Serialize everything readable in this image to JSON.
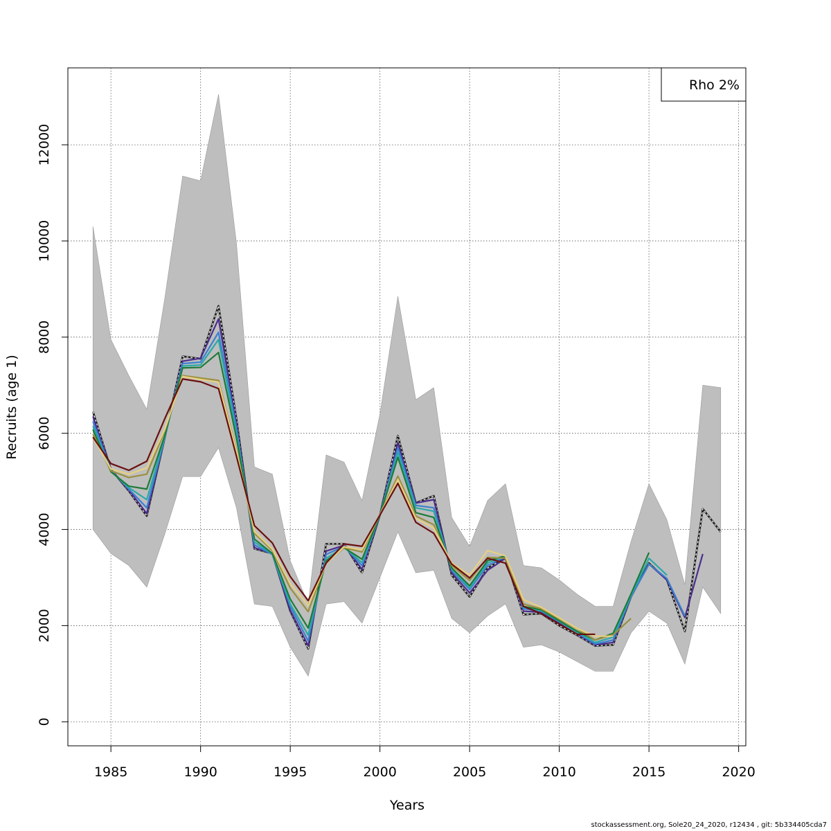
{
  "footer_text": "stockassessment.org, Sole20_24_2020, r12434 , git: 5b334405cda7",
  "chart_data": {
    "type": "line",
    "title": "",
    "xlabel": "Years",
    "ylabel": "Recruits (age 1)",
    "xlim": [
      1982.6,
      2020.4
    ],
    "ylim": [
      -500,
      13600
    ],
    "x_ticks": [
      1985,
      1990,
      1995,
      2000,
      2005,
      2010,
      2015,
      2020
    ],
    "y_ticks": [
      0,
      2000,
      4000,
      6000,
      8000,
      10000,
      12000
    ],
    "grid": true,
    "legend": {
      "position": "top-right",
      "label": "Rho 2%"
    },
    "confidence_band": {
      "x": [
        1984,
        1985,
        1986,
        1987,
        1988,
        1989,
        1990,
        1991,
        1992,
        1993,
        1994,
        1995,
        1996,
        1997,
        1998,
        1999,
        2000,
        2001,
        2002,
        2003,
        2004,
        2005,
        2006,
        2007,
        2008,
        2009,
        2010,
        2011,
        2012,
        2013,
        2014,
        2015,
        2016,
        2017,
        2018,
        2019
      ],
      "upper": [
        10300,
        7950,
        7200,
        6500,
        8800,
        11350,
        11250,
        13050,
        9950,
        5300,
        5150,
        3350,
        2450,
        5550,
        5400,
        4600,
        6400,
        8850,
        6700,
        6950,
        4250,
        3650,
        4600,
        4950,
        3250,
        3200,
        2950,
        2650,
        2400,
        2400,
        3750,
        4950,
        4200,
        2850,
        7000,
        6950
      ],
      "lower": [
        4000,
        3500,
        3250,
        2800,
        3900,
        5100,
        5100,
        5700,
        4450,
        2450,
        2400,
        1550,
        950,
        2450,
        2500,
        2050,
        3000,
        3950,
        3100,
        3150,
        2150,
        1850,
        2200,
        2450,
        1550,
        1600,
        1450,
        1250,
        1050,
        1050,
        1850,
        2300,
        2050,
        1200,
        2800,
        2250
      ]
    },
    "series": [
      {
        "color": "#1a1a1a",
        "dashed": true,
        "x": [
          1984,
          1985,
          1986,
          1987,
          1988,
          1989,
          1990,
          1991,
          1992,
          1993,
          1994,
          1995,
          1996,
          1997,
          1998,
          1999,
          2000,
          2001,
          2002,
          2003,
          2004,
          2005,
          2006,
          2007,
          2008,
          2009,
          2010,
          2011,
          2012,
          2013,
          2014,
          2015,
          2016,
          2017,
          2018,
          2019
        ],
        "values": [
          6450,
          5250,
          4800,
          4280,
          5900,
          7600,
          7550,
          8650,
          6300,
          3600,
          3500,
          2300,
          1520,
          3700,
          3700,
          3100,
          4300,
          5950,
          4550,
          4700,
          3050,
          2600,
          3200,
          3400,
          2230,
          2250,
          2000,
          1800,
          1580,
          1600,
          2600,
          3300,
          2950,
          1880,
          4430,
          3950
        ]
      },
      {
        "color": "#4b2d8e",
        "dashed": false,
        "x": [
          1984,
          1985,
          1986,
          1987,
          1988,
          1989,
          1990,
          1991,
          1992,
          1993,
          1994,
          1995,
          1996,
          1997,
          1998,
          1999,
          2000,
          2001,
          2002,
          2003,
          2004,
          2005,
          2006,
          2007,
          2008,
          2009,
          2010,
          2011,
          2012,
          2013,
          2014,
          2015,
          2016,
          2017,
          2018
        ],
        "values": [
          6350,
          5250,
          4820,
          4330,
          5900,
          7500,
          7560,
          8380,
          6200,
          3620,
          3500,
          2320,
          1580,
          3550,
          3670,
          3170,
          4300,
          5800,
          4550,
          4620,
          3100,
          2680,
          3150,
          3400,
          2300,
          2280,
          2050,
          1820,
          1600,
          1650,
          2600,
          3280,
          2950,
          2170,
          3490
        ]
      },
      {
        "color": "#3a80d0",
        "dashed": false,
        "x": [
          1984,
          1985,
          1986,
          1987,
          1988,
          1989,
          1990,
          1991,
          1992,
          1993,
          1994,
          1995,
          1996,
          1997,
          1998,
          1999,
          2000,
          2001,
          2002,
          2003,
          2004,
          2005,
          2006,
          2007,
          2008,
          2009,
          2010,
          2011,
          2012,
          2013,
          2014,
          2015,
          2016,
          2017
        ],
        "values": [
          6250,
          5230,
          4840,
          4450,
          5900,
          7450,
          7480,
          8100,
          6100,
          3680,
          3480,
          2400,
          1680,
          3480,
          3650,
          3250,
          4300,
          5700,
          4500,
          4450,
          3150,
          2750,
          3250,
          3430,
          2350,
          2300,
          2080,
          1850,
          1620,
          1700,
          2600,
          3280,
          2980,
          2200
        ]
      },
      {
        "color": "#2aa8a8",
        "dashed": false,
        "x": [
          1984,
          1985,
          1986,
          1987,
          1988,
          1989,
          1990,
          1991,
          1992,
          1993,
          1994,
          1995,
          1996,
          1997,
          1998,
          1999,
          2000,
          2001,
          2002,
          2003,
          2004,
          2005,
          2006,
          2007,
          2008,
          2009,
          2010,
          2011,
          2012,
          2013,
          2014,
          2015,
          2016
        ],
        "values": [
          6150,
          5210,
          4870,
          4620,
          5920,
          7400,
          7420,
          7950,
          6000,
          3740,
          3490,
          2450,
          1800,
          3400,
          3630,
          3310,
          4300,
          5600,
          4450,
          4380,
          3180,
          2780,
          3300,
          3450,
          2380,
          2310,
          2090,
          1860,
          1650,
          1760,
          2630,
          3400,
          3050
        ]
      },
      {
        "color": "#1e7a38",
        "dashed": false,
        "x": [
          1984,
          1985,
          1986,
          1987,
          1988,
          1989,
          1990,
          1991,
          1992,
          1993,
          1994,
          1995,
          1996,
          1997,
          1998,
          1999,
          2000,
          2001,
          2002,
          2003,
          2004,
          2005,
          2006,
          2007,
          2008,
          2009,
          2010,
          2011,
          2012,
          2013,
          2014,
          2015
        ],
        "values": [
          6080,
          5200,
          4900,
          4840,
          5950,
          7360,
          7370,
          7680,
          5900,
          3800,
          3500,
          2550,
          1950,
          3350,
          3620,
          3380,
          4300,
          5500,
          4350,
          4250,
          3200,
          2830,
          3350,
          3450,
          2400,
          2330,
          2100,
          1880,
          1700,
          1840,
          2660,
          3520
        ]
      },
      {
        "color": "#9a9040",
        "dashed": false,
        "x": [
          1984,
          1985,
          1986,
          1987,
          1988,
          1989,
          1990,
          1991,
          1992,
          1993,
          1994,
          1995,
          1996,
          1997,
          1998,
          1999,
          2000,
          2001,
          2002,
          2003,
          2004,
          2005,
          2006,
          2007,
          2008,
          2009,
          2010,
          2011,
          2012,
          2013,
          2014
        ],
        "values": [
          5980,
          5220,
          5080,
          5150,
          6050,
          7200,
          7150,
          7100,
          5650,
          3920,
          3560,
          2780,
          2290,
          3310,
          3620,
          3530,
          4310,
          5110,
          4280,
          4100,
          3250,
          2940,
          3420,
          3400,
          2450,
          2350,
          2140,
          1930,
          1700,
          1810,
          2150
        ]
      },
      {
        "color": "#e8d080",
        "dashed": false,
        "x": [
          1984,
          1985,
          1986,
          1987,
          1988,
          1989,
          1990,
          1991,
          1992,
          1993,
          1994,
          1995,
          1996,
          1997,
          1998,
          1999,
          2000,
          2001,
          2002,
          2003,
          2004,
          2005,
          2006,
          2007,
          2008,
          2009,
          2010,
          2011,
          2012,
          2013
        ],
        "values": [
          5920,
          5260,
          5150,
          5280,
          6080,
          7180,
          7120,
          7060,
          5620,
          3960,
          3590,
          2870,
          2420,
          3290,
          3640,
          3580,
          4310,
          5040,
          4230,
          4030,
          3300,
          3050,
          3560,
          3450,
          2540,
          2380,
          2160,
          1940,
          1780,
          1780
        ]
      },
      {
        "color": "#6b0f0f",
        "dashed": false,
        "x": [
          1984,
          1985,
          1986,
          1987,
          1988,
          1989,
          1990,
          1991,
          1992,
          1993,
          1994,
          1995,
          1996,
          1997,
          1998,
          1999,
          2000,
          2001,
          2002,
          2003,
          2004,
          2005,
          2006,
          2007,
          2008,
          2009,
          2010,
          2011,
          2012
        ],
        "values": [
          5920,
          5370,
          5230,
          5420,
          6300,
          7130,
          7070,
          6930,
          5520,
          4080,
          3720,
          3020,
          2520,
          3300,
          3700,
          3650,
          4300,
          4960,
          4150,
          3920,
          3280,
          2990,
          3400,
          3300,
          2400,
          2250,
          2030,
          1820,
          1820
        ]
      }
    ]
  }
}
